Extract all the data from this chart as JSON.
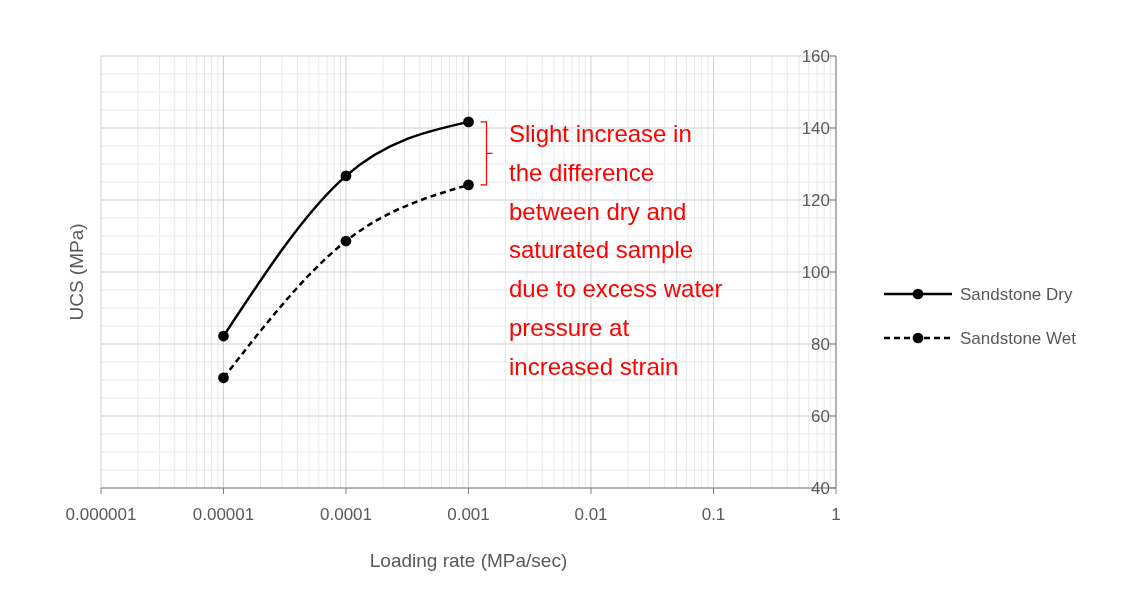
{
  "chart_data": {
    "type": "line",
    "xlabel": "Loading rate (MPa/sec)",
    "ylabel": "UCS (MPa)",
    "log": "x",
    "xlim": [
      1e-06,
      1
    ],
    "xticks": [
      {
        "value": 1e-06,
        "label": "0.000001"
      },
      {
        "value": 1e-05,
        "label": "0.00001"
      },
      {
        "value": 0.0001,
        "label": "0.0001"
      },
      {
        "value": 0.001,
        "label": "0.001"
      },
      {
        "value": 0.01,
        "label": "0.01"
      },
      {
        "value": 0.1,
        "label": "0.1"
      },
      1
    ],
    "ylim": [
      40,
      160
    ],
    "yticks": [
      40,
      60,
      80,
      100,
      120,
      140,
      160
    ],
    "grid": true,
    "legend": "right",
    "marker": "circle",
    "x": [
      1e-05,
      0.0001,
      0.001
    ],
    "series": [
      {
        "name": "Sandstone Dry",
        "color": "#000000",
        "values": [
          82.2,
          126.7,
          141.7
        ],
        "line_style": "solid"
      },
      {
        "name": "Sandstone Wet",
        "color": "#000000",
        "values": [
          70.6,
          108.6,
          124.2
        ],
        "line_style": "dashed"
      }
    ],
    "annotations": [
      "Slight increase in the difference between dry and saturated sample due to excess water pressure at increased strain"
    ]
  }
}
